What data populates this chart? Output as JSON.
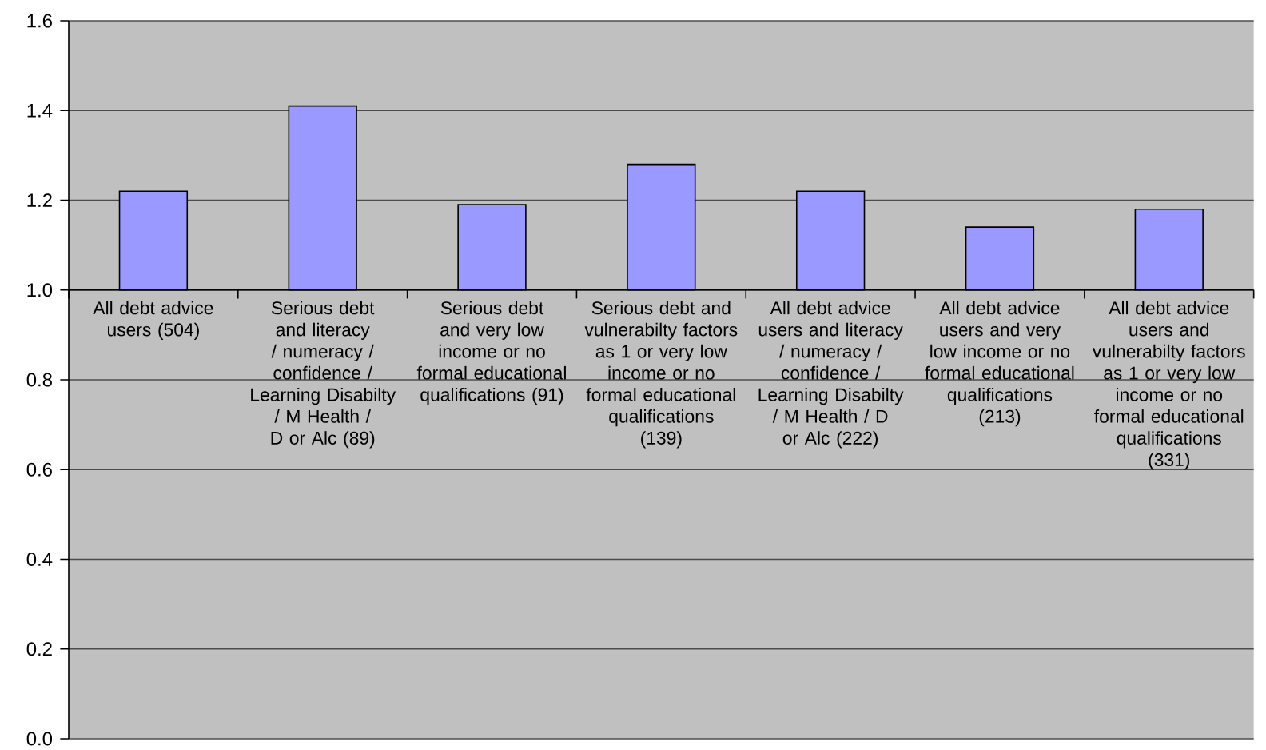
{
  "chart_data": {
    "type": "bar",
    "categories": [
      "All debt advice users (504)",
      "Serious debt and literacy / numeracy / confidence / Learning Disabilty / M Health / D or Alc (89)",
      "Serious debt and very low income or no formal educational qualifications (91)",
      "Serious debt and vulnerabilty factors as 1 or very low income or no formal educational qualifications (139)",
      "All debt advice users and literacy / numeracy / confidence / Learning Disabilty / M Health / D or Alc (222)",
      "All debt advice users and very low income or no formal educational qualifications (213)",
      "All debt advice users and vulnerabilty factors as 1 or very low income or no formal educational qualifications (331)"
    ],
    "base": [
      1.0,
      1.0,
      1.0,
      1.0,
      1.0,
      1.0,
      1.0
    ],
    "values": [
      0.22,
      0.41,
      0.19,
      0.28,
      0.22,
      0.14,
      0.18
    ],
    "color": "#9999ff",
    "ylim": [
      0,
      1.6
    ],
    "yticks": [
      {
        "value": 0,
        "label": "0.0"
      },
      0.2,
      0.4,
      0.6,
      0.8,
      {
        "value": 1,
        "label": "1.0"
      },
      1.2,
      1.4,
      1.6
    ],
    "grid": "y"
  }
}
